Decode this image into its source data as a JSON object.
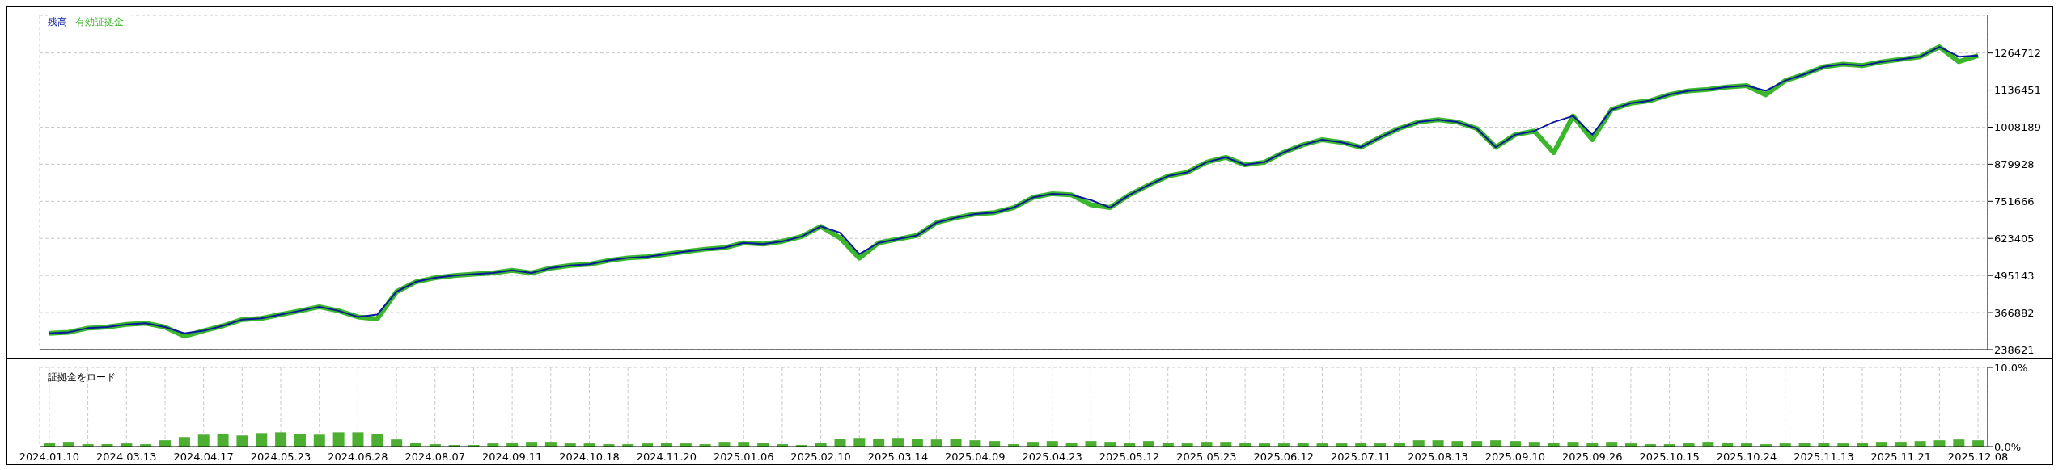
{
  "chart_data": [
    {
      "type": "line",
      "categories": [
        "2024.01.10",
        null,
        null,
        null,
        "2024.03.13",
        null,
        null,
        null,
        "2024.04.17",
        null,
        null,
        null,
        "2024.05.23",
        null,
        null,
        null,
        "2024.06.28",
        null,
        null,
        null,
        "2024.08.07",
        null,
        null,
        null,
        "2024.09.11",
        null,
        null,
        null,
        "2024.10.18",
        null,
        null,
        null,
        "2024.11.20",
        null,
        null,
        null,
        "2025.01.06",
        null,
        null,
        null,
        "2025.02.10",
        null,
        null,
        null,
        "2025.03.14",
        null,
        null,
        null,
        "2025.04.09",
        null,
        null,
        null,
        "2025.04.23",
        null,
        null,
        null,
        "2025.05.12",
        null,
        null,
        null,
        "2025.05.23",
        null,
        null,
        null,
        "2025.06.12",
        null,
        null,
        null,
        "2025.07.11",
        null,
        null,
        null,
        "2025.08.13",
        null,
        null,
        null,
        "2025.09.10",
        null,
        null,
        null,
        "2025.09.26",
        null,
        null,
        null,
        "2025.10.15",
        null,
        null,
        null,
        "2025.10.24",
        null,
        null,
        null,
        "2025.11.13",
        null,
        null,
        null,
        "2025.11.21",
        null,
        null,
        null,
        "2025.12.08"
      ],
      "series": [
        {
          "name": "有効証拠金",
          "color": "#3cb62c",
          "values": [
            295000,
            299000,
            313000,
            317000,
            326000,
            330000,
            317000,
            285000,
            304000,
            321000,
            343000,
            347000,
            360000,
            373000,
            387000,
            373000,
            352000,
            345000,
            439000,
            473000,
            487000,
            495000,
            500000,
            504000,
            513000,
            504000,
            521000,
            530000,
            534000,
            547000,
            556000,
            560000,
            569000,
            578000,
            586000,
            591000,
            608000,
            604000,
            613000,
            630000,
            665000,
            625000,
            555000,
            608000,
            621000,
            634000,
            678000,
            695000,
            708000,
            713000,
            730000,
            765000,
            778000,
            774000,
            740000,
            730000,
            774000,
            808000,
            839000,
            852000,
            887000,
            904000,
            878000,
            887000,
            921000,
            947000,
            965000,
            956000,
            939000,
            973000,
            1004000,
            1026000,
            1034000,
            1026000,
            1004000,
            939000,
            982000,
            995000,
            920000,
            1047000,
            965000,
            1069000,
            1091000,
            1100000,
            1121000,
            1134000,
            1139000,
            1147000,
            1152000,
            1120000,
            1169000,
            1191000,
            1217000,
            1226000,
            1221000,
            1234000,
            1243000,
            1252000,
            1286000,
            1235000,
            1256000
          ]
        },
        {
          "name": "残高",
          "color": "#0a1a9c",
          "values": [
            295000,
            299000,
            313000,
            317000,
            326000,
            330000,
            317000,
            295000,
            304000,
            321000,
            343000,
            347000,
            360000,
            373000,
            387000,
            373000,
            352000,
            360000,
            439000,
            473000,
            487000,
            495000,
            500000,
            504000,
            513000,
            504000,
            521000,
            530000,
            534000,
            547000,
            556000,
            560000,
            569000,
            578000,
            586000,
            591000,
            608000,
            604000,
            613000,
            630000,
            665000,
            643000,
            569000,
            608000,
            621000,
            634000,
            678000,
            695000,
            708000,
            713000,
            730000,
            765000,
            778000,
            774000,
            756000,
            730000,
            774000,
            808000,
            839000,
            852000,
            887000,
            904000,
            878000,
            887000,
            921000,
            947000,
            965000,
            956000,
            939000,
            973000,
            1004000,
            1026000,
            1034000,
            1026000,
            1004000,
            939000,
            982000,
            995000,
            1026000,
            1047000,
            982000,
            1069000,
            1091000,
            1100000,
            1121000,
            1134000,
            1139000,
            1147000,
            1152000,
            1134000,
            1169000,
            1191000,
            1217000,
            1226000,
            1221000,
            1234000,
            1243000,
            1252000,
            1286000,
            1252000,
            1256000
          ]
        }
      ],
      "ylim": [
        238621,
        1395000
      ],
      "yticks": [
        238621,
        366882,
        495143,
        623405,
        751666,
        879928,
        1008189,
        1136451,
        1264712
      ],
      "grid": true,
      "legend": "top left",
      "marker": "none",
      "tick_labels": "y"
    },
    {
      "type": "bar",
      "title": "証拠金をロード",
      "categories": [
        "2024.01.10",
        null,
        null,
        null,
        "2024.03.13",
        null,
        null,
        null,
        "2024.04.17",
        null,
        null,
        null,
        "2024.05.23",
        null,
        null,
        null,
        "2024.06.28",
        null,
        null,
        null,
        "2024.08.07",
        null,
        null,
        null,
        "2024.09.11",
        null,
        null,
        null,
        "2024.10.18",
        null,
        null,
        null,
        "2024.11.20",
        null,
        null,
        null,
        "2025.01.06",
        null,
        null,
        null,
        "2025.02.10",
        null,
        null,
        null,
        "2025.03.14",
        null,
        null,
        null,
        "2025.04.09",
        null,
        null,
        null,
        "2025.04.23",
        null,
        null,
        null,
        "2025.05.12",
        null,
        null,
        null,
        "2025.05.23",
        null,
        null,
        null,
        "2025.06.12",
        null,
        null,
        null,
        "2025.07.11",
        null,
        null,
        null,
        "2025.08.13",
        null,
        null,
        null,
        "2025.09.10",
        null,
        null,
        null,
        "2025.09.26",
        null,
        null,
        null,
        "2025.10.15",
        null,
        null,
        null,
        "2025.10.24",
        null,
        null,
        null,
        "2025.11.13",
        null,
        null,
        null,
        "2025.11.21",
        null,
        null,
        null,
        "2025.12.08"
      ],
      "color": "#4caf32",
      "values": [
        0.5,
        0.6,
        0.3,
        0.3,
        0.4,
        0.3,
        0.8,
        1.2,
        1.5,
        1.6,
        1.4,
        1.7,
        1.8,
        1.6,
        1.5,
        1.8,
        1.8,
        1.6,
        0.9,
        0.5,
        0.3,
        0.2,
        0.2,
        0.4,
        0.5,
        0.6,
        0.6,
        0.4,
        0.4,
        0.3,
        0.3,
        0.4,
        0.5,
        0.4,
        0.3,
        0.6,
        0.6,
        0.5,
        0.3,
        0.2,
        0.5,
        1.0,
        1.1,
        1.0,
        1.1,
        1.0,
        0.9,
        1.0,
        0.8,
        0.7,
        0.3,
        0.6,
        0.7,
        0.5,
        0.7,
        0.6,
        0.5,
        0.7,
        0.5,
        0.4,
        0.6,
        0.6,
        0.5,
        0.4,
        0.4,
        0.5,
        0.4,
        0.4,
        0.5,
        0.4,
        0.5,
        0.8,
        0.8,
        0.7,
        0.7,
        0.8,
        0.7,
        0.6,
        0.5,
        0.6,
        0.5,
        0.6,
        0.4,
        0.3,
        0.3,
        0.5,
        0.6,
        0.5,
        0.4,
        0.3,
        0.4,
        0.5,
        0.5,
        0.4,
        0.5,
        0.6,
        0.6,
        0.7,
        0.8,
        0.9,
        0.8
      ],
      "ylim": [
        0,
        10
      ],
      "yticks": [
        {
          "value": 0,
          "label": "0.0%"
        },
        {
          "value": 10,
          "label": "10.0%"
        }
      ],
      "grid": true
    }
  ]
}
